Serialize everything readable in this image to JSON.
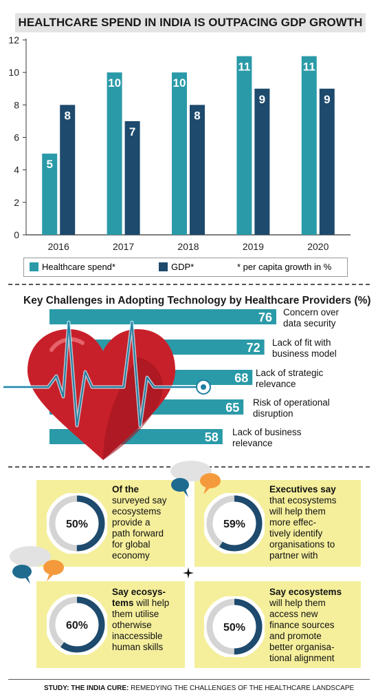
{
  "chart1": {
    "title": "HEALTHCARE SPEND IN INDIA IS OUTPACING GDP GROWTH",
    "legend": {
      "healthcare": "Healthcare spend*",
      "gdp": "GDP*",
      "note": "* per capita growth in %"
    }
  },
  "chart2": {
    "title": "Key Challenges in Adopting Technology by Healthcare Providers (%)"
  },
  "chart_data": [
    {
      "type": "bar",
      "title": "HEALTHCARE SPEND IN INDIA IS OUTPACING GDP GROWTH",
      "categories": [
        "2016",
        "2017",
        "2018",
        "2019",
        "2020"
      ],
      "series": [
        {
          "name": "Healthcare spend*",
          "values": [
            5,
            10,
            10,
            11,
            11
          ],
          "color": "#2a9aa8"
        },
        {
          "name": "GDP*",
          "values": [
            8,
            7,
            8,
            9,
            9
          ],
          "color": "#1d4a6d"
        }
      ],
      "ylim": [
        0,
        12
      ],
      "yticks": [
        0,
        2,
        4,
        6,
        8,
        10,
        12
      ],
      "grid": false,
      "legend_position": "bottom"
    },
    {
      "type": "bar",
      "orientation": "horizontal",
      "title": "Key Challenges in Adopting Technology by Healthcare Providers (%)",
      "categories": [
        [
          "Concern over",
          "data security"
        ],
        [
          "Lack of fit with",
          "business model"
        ],
        [
          "Lack of strategic",
          "relevance"
        ],
        [
          "Risk of operational",
          "disruption"
        ],
        [
          "Lack of business",
          "relevance"
        ]
      ],
      "values": [
        76,
        72,
        68,
        65,
        58
      ],
      "color": "#2a9aa8"
    }
  ],
  "cards": [
    {
      "value": 50,
      "label": "50%",
      "lines": [
        [
          "Of the",
          true
        ],
        [
          "surveyed say",
          false
        ],
        [
          "ecosystems",
          false
        ],
        [
          "provide a",
          false
        ],
        [
          "path forward",
          false
        ],
        [
          "for global",
          false
        ],
        [
          "economy",
          false
        ]
      ]
    },
    {
      "value": 59,
      "label": "59%",
      "lines": [
        [
          "Executives say",
          true
        ],
        [
          "that ecosystems",
          false
        ],
        [
          "will help them",
          false
        ],
        [
          "more effec-",
          false
        ],
        [
          "tively identify",
          false
        ],
        [
          "organisations to",
          false
        ],
        [
          "partner with",
          false
        ]
      ]
    },
    {
      "value": 60,
      "label": "60%",
      "lines": [
        [
          "Say ecosys-",
          true
        ],
        [
          "tems",
          true,
          " will help"
        ],
        [
          "them utilise",
          false
        ],
        [
          "otherwise",
          false
        ],
        [
          "inaccessible",
          false
        ],
        [
          "human skills",
          false
        ]
      ]
    },
    {
      "value": 50,
      "label": "50%",
      "lines": [
        [
          "Say ecosystems",
          true
        ],
        [
          "will help them",
          false
        ],
        [
          "access new",
          false
        ],
        [
          "finance sources",
          false
        ],
        [
          "and promote",
          false
        ],
        [
          "better organisa-",
          false
        ],
        [
          "tional alignment",
          false
        ]
      ]
    }
  ],
  "source": {
    "bold": "STUDY: THE INDIA CURE:",
    "rest": " REMEDYING THE CHALLENGES OF THE HEALTHCARE LANDSCAPE"
  },
  "colors": {
    "teal": "#2a9aa8",
    "navy": "#1d4a6d",
    "card": "#f5ef9c",
    "ring_bg": "#d4d4d4",
    "heart": "#c8202a",
    "orange": "#f59a3c"
  }
}
